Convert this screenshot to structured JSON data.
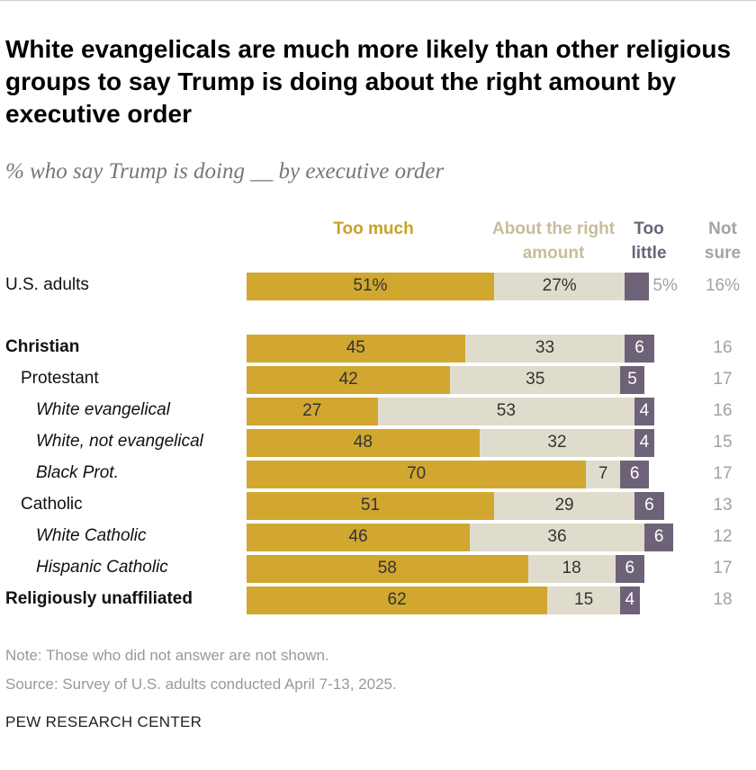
{
  "chart_data": {
    "type": "stacked-bar",
    "title": "White evangelicals are much more likely than other religious groups to say Trump is doing about the right amount by executive order",
    "subtitle": "% who say Trump is doing __ by executive order",
    "categories": [
      "U.S. adults",
      "Christian",
      "Protestant",
      "White evangelical",
      "White, not evangelical",
      "Black Prot.",
      "Catholic",
      "White Catholic",
      "Hispanic Catholic",
      "Religiously unaffiliated"
    ],
    "series": [
      {
        "name": "Too much",
        "color": "#d1a730",
        "values": [
          51,
          45,
          42,
          27,
          48,
          70,
          51,
          46,
          58,
          62
        ],
        "value_labels": [
          "51%",
          null,
          null,
          null,
          null,
          null,
          null,
          null,
          null,
          null
        ]
      },
      {
        "name": "About the right amount",
        "color": "#e0dccd",
        "values": [
          27,
          33,
          35,
          53,
          32,
          7,
          29,
          36,
          18,
          15
        ],
        "value_labels": [
          "27%",
          null,
          null,
          null,
          null,
          null,
          null,
          null,
          null,
          null
        ]
      },
      {
        "name": "Too little",
        "color": "#6e6279",
        "values": [
          5,
          6,
          5,
          4,
          4,
          6,
          6,
          6,
          6,
          4
        ],
        "value_labels": [
          "5%",
          null,
          null,
          null,
          null,
          null,
          null,
          null,
          null,
          null
        ]
      },
      {
        "name": "Not sure",
        "color": "#a3a0a6",
        "values": [
          16,
          16,
          17,
          16,
          15,
          17,
          13,
          12,
          17,
          18
        ],
        "value_labels": [
          "16%",
          null,
          null,
          null,
          null,
          null,
          null,
          null,
          null,
          null
        ]
      }
    ],
    "notes": [
      "Note: Those who did not answer are not shown.",
      "Source: Survey of U.S. adults conducted April 7-13, 2025."
    ],
    "source": "PEW RESEARCH CENTER"
  }
}
